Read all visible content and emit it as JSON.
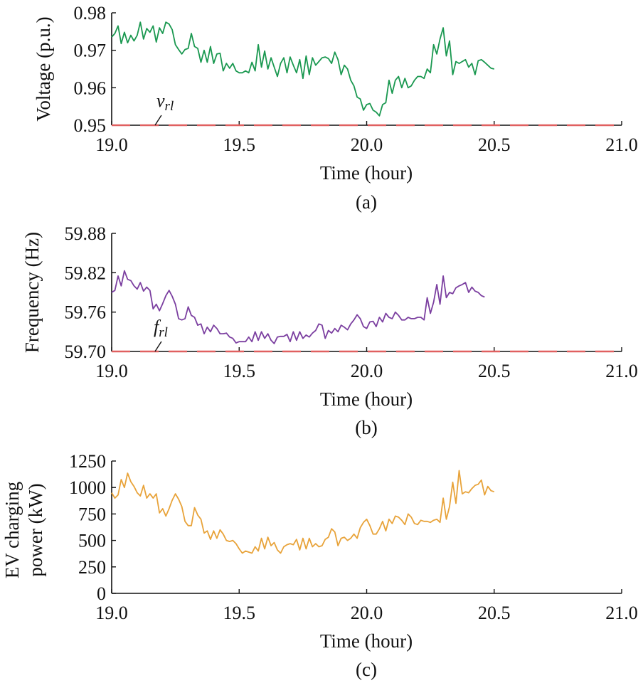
{
  "chart_data": [
    {
      "type": "line",
      "panel_label": "(a)",
      "xlabel": "Time (hour)",
      "ylabel": "Voltage (p.u.)",
      "xlim": [
        19.0,
        21.0
      ],
      "ylim": [
        0.95,
        0.98
      ],
      "xticks": [
        "19.0",
        "19.5",
        "20.0",
        "20.5",
        "21.0"
      ],
      "yticks": [
        "0.95",
        "0.96",
        "0.97",
        "0.98"
      ],
      "xtick_values": [
        19.0,
        19.5,
        20.0,
        20.5,
        21.0
      ],
      "ytick_values": [
        0.95,
        0.96,
        0.97,
        0.98
      ],
      "grid": false,
      "series": [
        {
          "color": "#1a9850",
          "x_start": 19.0,
          "x_step": 0.0125,
          "values": [
            0.9735,
            0.9745,
            0.9765,
            0.9718,
            0.9748,
            0.972,
            0.974,
            0.9725,
            0.974,
            0.9775,
            0.973,
            0.9758,
            0.9748,
            0.9765,
            0.9722,
            0.976,
            0.9745,
            0.9775,
            0.977,
            0.9755,
            0.9715,
            0.9702,
            0.969,
            0.9702,
            0.9705,
            0.9745,
            0.971,
            0.9705,
            0.9668,
            0.97,
            0.9668,
            0.971,
            0.9665,
            0.969,
            0.9692,
            0.9645,
            0.9665,
            0.9652,
            0.9665,
            0.9645,
            0.964,
            0.964,
            0.9645,
            0.964,
            0.9668,
            0.9645,
            0.9715,
            0.9655,
            0.9698,
            0.965,
            0.968,
            0.9655,
            0.963,
            0.9665,
            0.968,
            0.964,
            0.9682,
            0.966,
            0.964,
            0.9675,
            0.9625,
            0.9685,
            0.9635,
            0.968,
            0.966,
            0.967,
            0.968,
            0.9682,
            0.9678,
            0.9665,
            0.9695,
            0.9675,
            0.9635,
            0.966,
            0.965,
            0.962,
            0.9605,
            0.9575,
            0.957,
            0.954,
            0.9555,
            0.9558,
            0.954,
            0.9535,
            0.9525,
            0.9555,
            0.956,
            0.962,
            0.9585,
            0.962,
            0.963,
            0.96,
            0.9625,
            0.96,
            0.9605,
            0.962,
            0.963,
            0.963,
            0.9625,
            0.965,
            0.964,
            0.9715,
            0.969,
            0.973,
            0.976,
            0.9685,
            0.9725,
            0.9635,
            0.967,
            0.9665,
            0.967,
            0.9675,
            0.9655,
            0.9665,
            0.9635,
            0.9672,
            0.9675,
            0.9668,
            0.966,
            0.9652,
            0.965
          ]
        },
        {
          "name": "",
          "color": "#e06060",
          "dashed": true,
          "values_x": [
            19.0,
            21.0
          ],
          "values": [
            0.95,
            0.95
          ]
        }
      ],
      "annotation": {
        "base": "v",
        "sub": "rl",
        "x": 19.17,
        "y": 0.95
      }
    },
    {
      "type": "line",
      "panel_label": "(b)",
      "xlabel": "Time (hour)",
      "ylabel": "Frequency (Hz)",
      "xlim": [
        19.0,
        21.0
      ],
      "ylim": [
        59.7,
        59.88
      ],
      "xticks": [
        "19.0",
        "19.5",
        "20.0",
        "20.5",
        "21.0"
      ],
      "yticks": [
        "59.70",
        "59.76",
        "59.82",
        "59.88"
      ],
      "xtick_values": [
        19.0,
        19.5,
        20.0,
        20.5,
        21.0
      ],
      "ytick_values": [
        59.7,
        59.76,
        59.82,
        59.88
      ],
      "grid": false,
      "series": [
        {
          "color": "#7b3fa0",
          "x_start": 19.0,
          "x_step": 0.0125,
          "values": [
            59.79,
            59.793,
            59.815,
            59.8,
            59.823,
            59.81,
            59.808,
            59.8,
            59.795,
            59.805,
            59.792,
            59.798,
            59.793,
            59.765,
            59.772,
            59.762,
            59.773,
            59.785,
            59.793,
            59.784,
            59.772,
            59.75,
            59.748,
            59.75,
            59.768,
            59.755,
            59.752,
            59.74,
            59.742,
            59.727,
            59.737,
            59.73,
            59.74,
            59.735,
            59.727,
            59.727,
            59.728,
            59.722,
            59.72,
            59.713,
            59.715,
            59.715,
            59.715,
            59.722,
            59.715,
            59.73,
            59.717,
            59.73,
            59.72,
            59.727,
            59.717,
            59.712,
            59.722,
            59.723,
            59.723,
            59.726,
            59.715,
            59.73,
            59.717,
            59.73,
            59.72,
            59.725,
            59.722,
            59.728,
            59.732,
            59.742,
            59.74,
            59.72,
            59.732,
            59.728,
            59.735,
            59.73,
            59.74,
            59.737,
            59.733,
            59.742,
            59.748,
            59.756,
            59.75,
            59.738,
            59.735,
            59.745,
            59.746,
            59.738,
            59.752,
            59.745,
            59.758,
            59.752,
            59.75,
            59.76,
            59.755,
            59.748,
            59.748,
            59.752,
            59.75,
            59.75,
            59.752,
            59.752,
            59.748,
            59.782,
            59.758,
            59.775,
            59.802,
            59.772,
            59.815,
            59.782,
            59.79,
            59.788,
            59.797,
            59.8,
            59.802,
            59.805,
            59.79,
            59.798,
            59.792,
            59.79,
            59.785,
            59.783
          ]
        },
        {
          "name": "",
          "color": "#e06060",
          "dashed": true,
          "values_x": [
            19.0,
            21.0
          ],
          "values": [
            59.7,
            59.7
          ]
        }
      ],
      "annotation": {
        "base": "f",
        "sub": "rl",
        "x": 19.17,
        "y": 59.7
      }
    },
    {
      "type": "line",
      "panel_label": "(c)",
      "xlabel": "Time (hour)",
      "ylabel_lines": [
        "EV charging",
        "power (kW)"
      ],
      "xlim": [
        19.0,
        21.0
      ],
      "ylim": [
        0,
        1250
      ],
      "xticks": [
        "19.0",
        "19.5",
        "20.0",
        "20.5",
        "21.0"
      ],
      "yticks": [
        "0",
        "250",
        "500",
        "750",
        "1000",
        "1250"
      ],
      "xtick_values": [
        19.0,
        19.5,
        20.0,
        20.5,
        21.0
      ],
      "ytick_values": [
        0,
        250,
        500,
        750,
        1000,
        1250
      ],
      "grid": false,
      "series": [
        {
          "color": "#e8a33a",
          "x_start": 19.0,
          "x_step": 0.0125,
          "values": [
            950,
            900,
            930,
            1075,
            1000,
            1135,
            1055,
            1010,
            950,
            920,
            1020,
            900,
            940,
            900,
            940,
            760,
            800,
            730,
            800,
            880,
            940,
            890,
            820,
            680,
            640,
            640,
            810,
            740,
            700,
            570,
            590,
            510,
            590,
            520,
            600,
            560,
            500,
            490,
            500,
            470,
            420,
            380,
            400,
            390,
            380,
            440,
            400,
            520,
            420,
            530,
            450,
            480,
            410,
            380,
            440,
            460,
            470,
            460,
            510,
            410,
            520,
            420,
            520,
            440,
            470,
            440,
            450,
            510,
            530,
            610,
            580,
            450,
            520,
            530,
            500,
            520,
            560,
            520,
            620,
            670,
            700,
            640,
            560,
            560,
            610,
            680,
            590,
            700,
            660,
            730,
            720,
            690,
            650,
            750,
            720,
            660,
            650,
            690,
            680,
            680,
            670,
            690,
            700,
            670,
            900,
            700,
            820,
            1050,
            850,
            1160,
            940,
            960,
            950,
            990,
            1020,
            1030,
            1070,
            930,
            1010,
            970,
            960
          ]
        }
      ]
    }
  ]
}
